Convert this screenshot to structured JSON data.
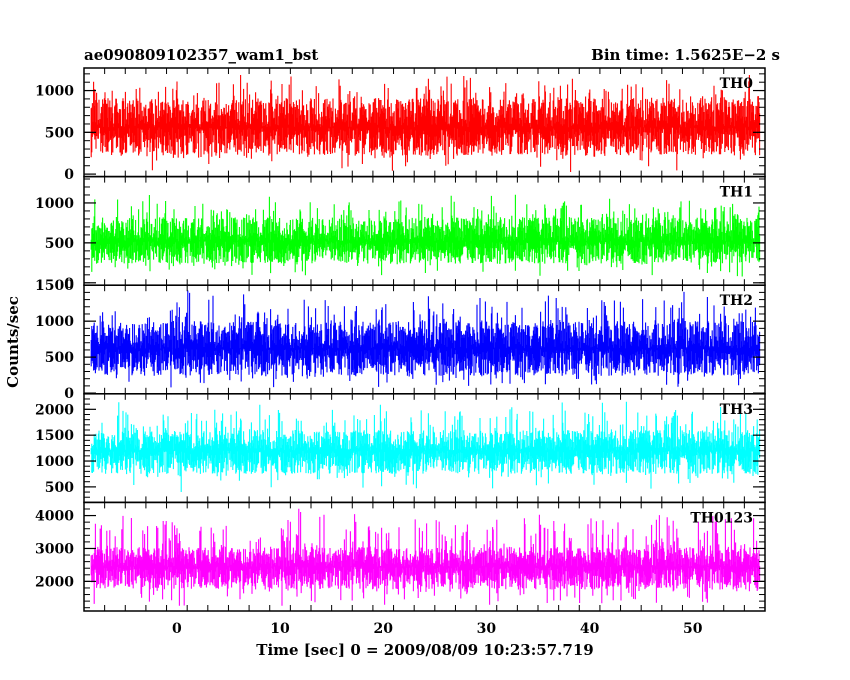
{
  "header": {
    "title": "ae090809102357_wam1_bst",
    "bin_time": "Bin time: 1.5625E−2 s"
  },
  "chart_data": {
    "type": "line",
    "xlabel": "Time [sec] 0 = 2009/08/09 10:23:57.719",
    "ylabel": "Counts/sec",
    "x_range": [
      -8.3,
      56.5
    ],
    "xlim": [
      -9,
      57
    ],
    "x_ticks": [
      0,
      10,
      20,
      30,
      40,
      50
    ],
    "grid": false,
    "panels": [
      {
        "name": "TH0",
        "color": "#ff0000",
        "ylim": [
          -30,
          1270
        ],
        "y_ticks": [
          0,
          500,
          1000
        ],
        "base": 560,
        "upper_spread": [
          350,
          670
        ],
        "lower_spread": [
          340,
          550
        ]
      },
      {
        "name": "TH1",
        "color": "#00ff00",
        "ylim": [
          -30,
          1330
        ],
        "y_ticks": [
          0,
          500,
          1000
        ],
        "base": 520,
        "upper_spread": [
          300,
          620
        ],
        "lower_spread": [
          280,
          480
        ]
      },
      {
        "name": "TH2",
        "color": "#0000ff",
        "ylim": [
          -10,
          1500
        ],
        "y_ticks": [
          0,
          500,
          1000,
          1500
        ],
        "base": 620,
        "upper_spread": [
          380,
          830
        ],
        "lower_spread": [
          380,
          590
        ]
      },
      {
        "name": "TH3",
        "color": "#00ffff",
        "ylim": [
          200,
          2300
        ],
        "y_ticks": [
          500,
          1000,
          1500,
          2000
        ],
        "base": 1200,
        "upper_spread": [
          400,
          1000
        ],
        "lower_spread": [
          450,
          820
        ]
      },
      {
        "name": "TH0123",
        "color": "#ff00ff",
        "ylim": [
          1100,
          4400
        ],
        "y_ticks": [
          2000,
          3000,
          4000
        ],
        "base": 2450,
        "upper_spread": [
          600,
          1800
        ],
        "lower_spread": [
          700,
          1300
        ]
      }
    ]
  }
}
